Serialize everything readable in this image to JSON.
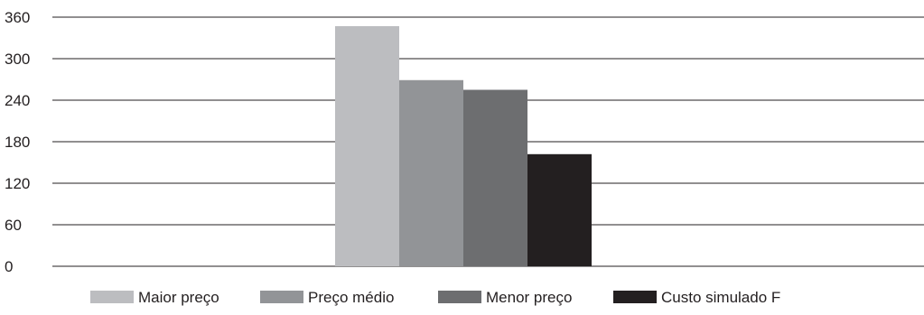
{
  "chart_data": {
    "type": "bar",
    "categories": [
      ""
    ],
    "series": [
      {
        "name": "Maior preço",
        "values": [
          347
        ],
        "color": "#bcbdc0"
      },
      {
        "name": "Preço médio",
        "values": [
          269
        ],
        "color": "#929497"
      },
      {
        "name": "Menor preço",
        "values": [
          255
        ],
        "color": "#6d6e70"
      },
      {
        "name": "Custo simulado F",
        "values": [
          162
        ],
        "color": "#231f20"
      }
    ],
    "title": "",
    "xlabel": "",
    "ylabel": "",
    "ylim": [
      0,
      360
    ],
    "yticks": [
      0,
      60,
      120,
      180,
      240,
      300,
      360
    ],
    "grid": true,
    "legend": "bottom"
  }
}
